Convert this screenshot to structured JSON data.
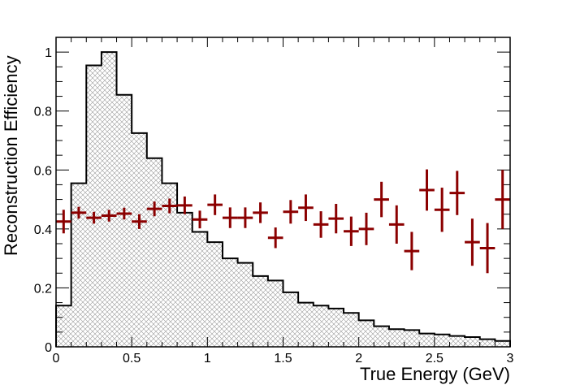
{
  "chart_data": {
    "type": "histogram",
    "xlabel": "True Energy (GeV)",
    "ylabel": "Reconstruction Efficiency",
    "xlim": [
      0,
      3
    ],
    "ylim": [
      0,
      1.05
    ],
    "xticks": [
      {
        "value": 0,
        "label": "0"
      },
      {
        "value": 0.5,
        "label": "0.5"
      },
      {
        "value": 1,
        "label": "1"
      },
      {
        "value": 1.5,
        "label": "1.5"
      },
      {
        "value": 2,
        "label": "2"
      },
      {
        "value": 2.5,
        "label": "2.5"
      },
      {
        "value": 3,
        "label": "3"
      }
    ],
    "yticks": [
      {
        "value": 0,
        "label": "0"
      },
      {
        "value": 0.2,
        "label": "0.2"
      },
      {
        "value": 0.4,
        "label": "0.4"
      },
      {
        "value": 0.6,
        "label": "0.6"
      },
      {
        "value": 0.8,
        "label": "0.8"
      },
      {
        "value": 1,
        "label": "1"
      }
    ],
    "bin_edges": [
      0,
      0.1,
      0.2,
      0.3,
      0.4,
      0.5,
      0.6,
      0.7,
      0.8,
      0.9,
      1.0,
      1.1,
      1.2,
      1.3,
      1.4,
      1.5,
      1.6,
      1.7,
      1.8,
      1.9,
      2.0,
      2.1,
      2.2,
      2.3,
      2.4,
      2.5,
      2.6,
      2.7,
      2.8,
      2.9,
      3.0
    ],
    "histogram": {
      "values": [
        0.14,
        0.555,
        0.955,
        1.0,
        0.855,
        0.725,
        0.64,
        0.555,
        0.455,
        0.39,
        0.355,
        0.3,
        0.285,
        0.24,
        0.225,
        0.185,
        0.15,
        0.14,
        0.13,
        0.115,
        0.09,
        0.07,
        0.06,
        0.057,
        0.045,
        0.042,
        0.037,
        0.033,
        0.026,
        0.02
      ],
      "line_color": "#000000",
      "fill_pattern": "crosshatch"
    },
    "points": {
      "color": "#8b0000",
      "x": [
        0.05,
        0.15,
        0.25,
        0.35,
        0.45,
        0.55,
        0.65,
        0.75,
        0.85,
        0.95,
        1.05,
        1.15,
        1.25,
        1.35,
        1.45,
        1.55,
        1.65,
        1.75,
        1.85,
        1.95,
        2.05,
        2.15,
        2.25,
        2.35,
        2.45,
        2.55,
        2.65,
        2.75,
        2.85,
        2.95
      ],
      "y": [
        0.425,
        0.455,
        0.438,
        0.445,
        0.452,
        0.425,
        0.468,
        0.478,
        0.48,
        0.432,
        0.482,
        0.438,
        0.438,
        0.455,
        0.37,
        0.458,
        0.472,
        0.415,
        0.435,
        0.392,
        0.4,
        0.5,
        0.415,
        0.325,
        0.532,
        0.465,
        0.522,
        0.355,
        0.335,
        0.5
      ],
      "yerr": [
        0.04,
        0.02,
        0.02,
        0.02,
        0.02,
        0.025,
        0.025,
        0.025,
        0.03,
        0.03,
        0.035,
        0.035,
        0.035,
        0.035,
        0.035,
        0.04,
        0.045,
        0.045,
        0.05,
        0.05,
        0.055,
        0.06,
        0.065,
        0.065,
        0.07,
        0.075,
        0.075,
        0.08,
        0.085,
        0.1
      ],
      "xerr": 0.05
    }
  }
}
